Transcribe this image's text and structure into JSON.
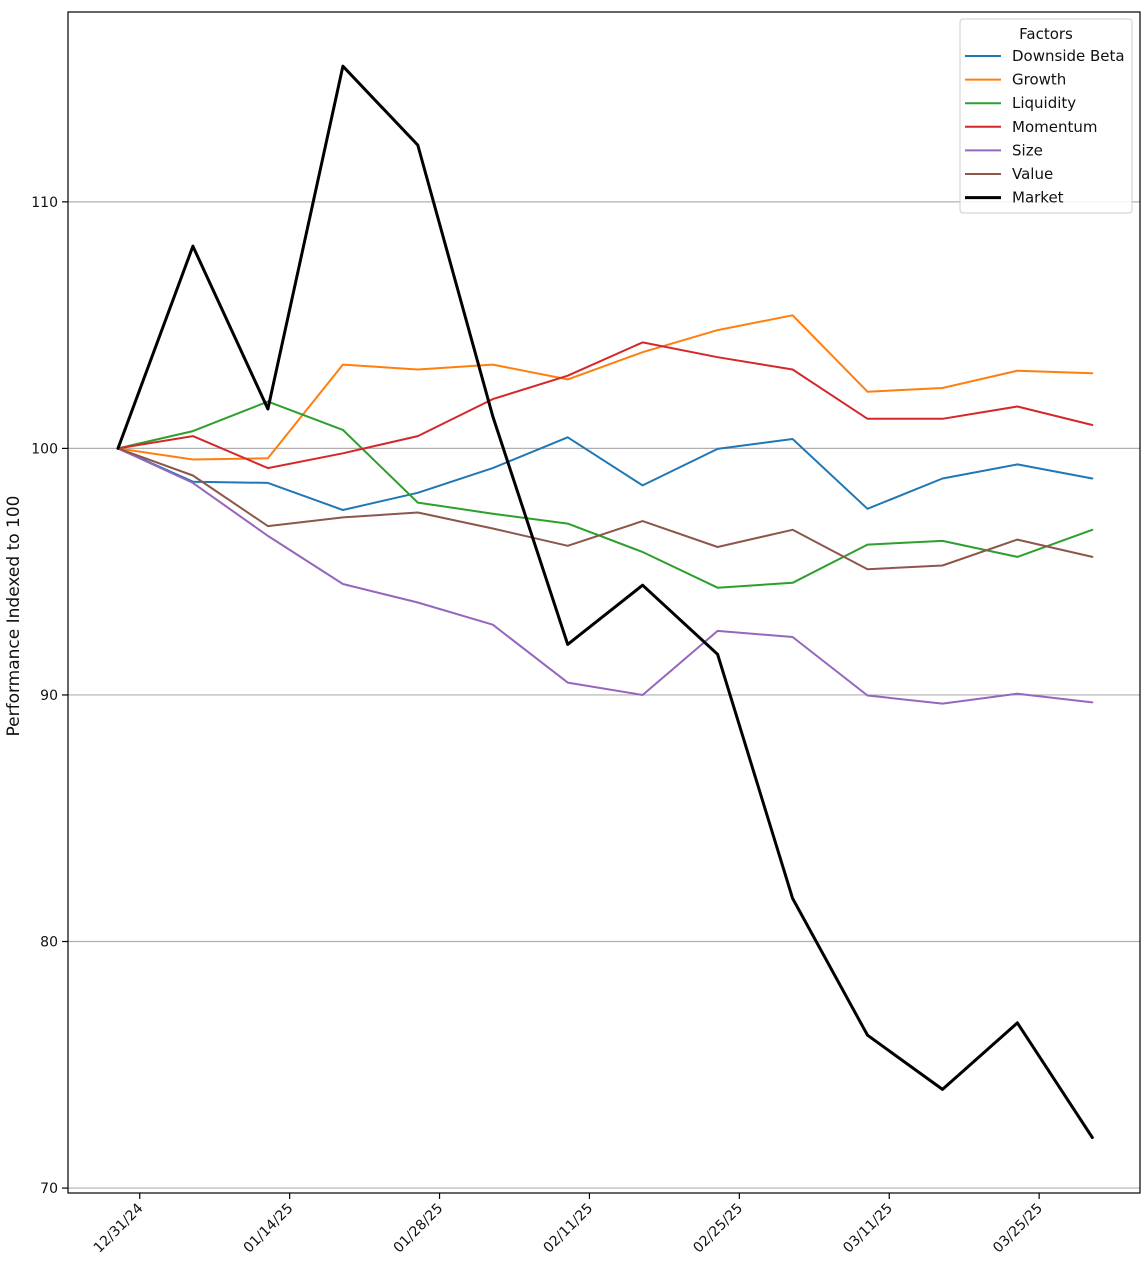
{
  "chart_data": {
    "type": "line",
    "title": "",
    "xlabel": "",
    "ylabel": "Performance Indexed to 100",
    "ylim": [
      69.8,
      117.7
    ],
    "yticks": [
      70,
      80,
      90,
      100,
      110
    ],
    "grid": "horizontal",
    "x_positions": [
      "12/30/24",
      "01/06/25",
      "01/13/25",
      "01/20/25",
      "01/27/25",
      "02/03/25",
      "02/10/25",
      "02/17/25",
      "02/24/25",
      "03/03/25",
      "03/10/25",
      "03/17/25",
      "03/24/25",
      "03/31/25"
    ],
    "x_tick_labels": [
      "12/31/24",
      "01/14/25",
      "01/28/25",
      "02/11/25",
      "02/25/25",
      "03/11/25",
      "03/25/25"
    ],
    "x_tick_positions": [
      0.29,
      2.29,
      4.29,
      6.29,
      8.29,
      10.29,
      12.29
    ],
    "legend": {
      "title": "Factors",
      "placement": "top-right"
    },
    "series": [
      {
        "name": "Downside Beta",
        "color": "#1f77b4",
        "values": [
          100.0,
          98.65,
          98.6,
          97.5,
          98.2,
          99.2,
          100.45,
          98.5,
          99.98,
          100.38,
          97.55,
          98.78,
          99.35,
          98.78
        ]
      },
      {
        "name": "Growth",
        "color": "#ff7f0e",
        "values": [
          100.0,
          99.55,
          99.6,
          103.4,
          103.2,
          103.4,
          102.8,
          103.9,
          104.8,
          105.4,
          102.3,
          102.45,
          103.15,
          103.05
        ]
      },
      {
        "name": "Liquidity",
        "color": "#2ca02c",
        "values": [
          100.0,
          100.7,
          101.9,
          100.75,
          97.8,
          97.35,
          96.95,
          95.8,
          94.35,
          94.55,
          96.1,
          96.25,
          95.6,
          96.7
        ]
      },
      {
        "name": "Momentum",
        "color": "#d62728",
        "values": [
          100.0,
          100.5,
          99.2,
          99.8,
          100.5,
          102.0,
          102.95,
          104.3,
          103.7,
          103.2,
          101.2,
          101.2,
          101.7,
          100.95
        ]
      },
      {
        "name": "Size",
        "color": "#9467bd",
        "values": [
          100.0,
          98.6,
          96.45,
          94.5,
          93.75,
          92.85,
          90.5,
          90.0,
          92.6,
          92.35,
          89.98,
          89.65,
          90.05,
          89.7
        ]
      },
      {
        "name": "Value",
        "color": "#8c564b",
        "values": [
          100.0,
          98.9,
          96.85,
          97.2,
          97.4,
          96.75,
          96.05,
          97.05,
          96.0,
          96.7,
          95.1,
          95.25,
          96.3,
          95.6
        ]
      },
      {
        "name": "Market",
        "color": "#000000",
        "values": [
          100.0,
          108.2,
          101.6,
          115.5,
          112.3,
          101.3,
          92.05,
          94.45,
          91.65,
          81.75,
          76.2,
          74.0,
          76.7,
          72.05
        ]
      }
    ]
  }
}
